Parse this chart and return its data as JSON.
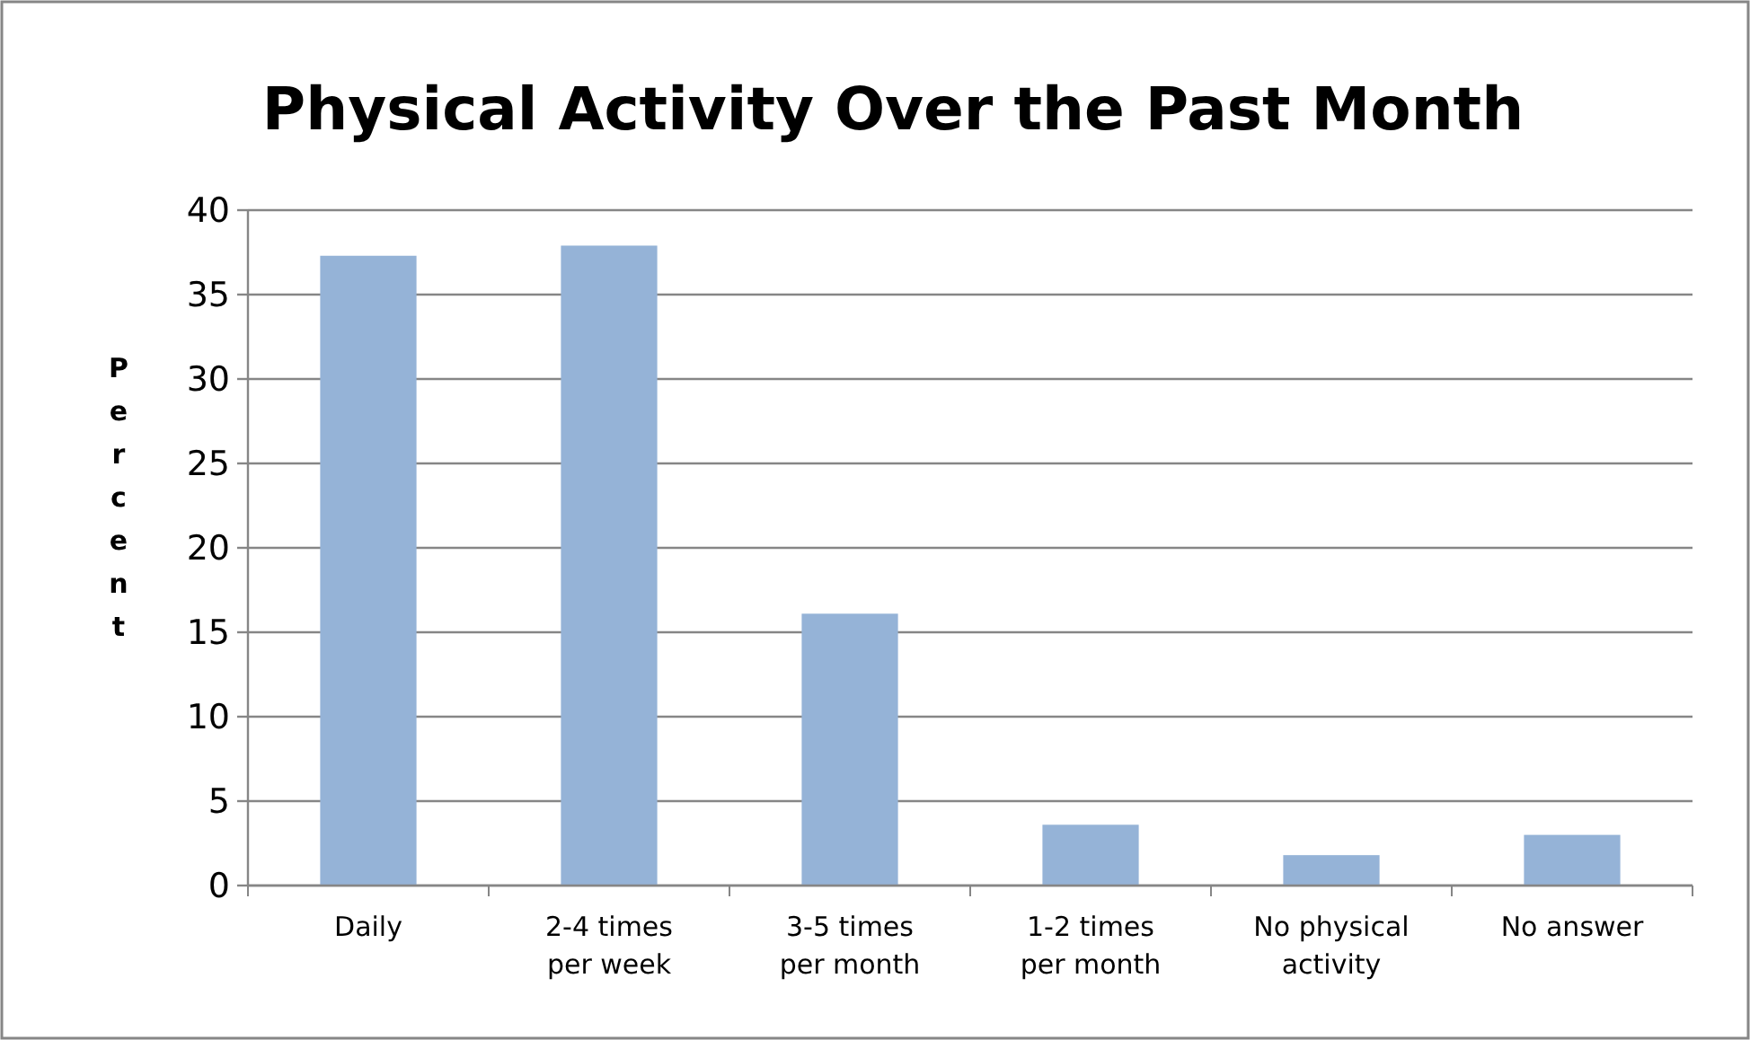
{
  "chart_data": {
    "type": "bar",
    "title": "Physical Activity Over the Past Month",
    "ylabel": "Percent",
    "categories": [
      "Daily",
      "2-4 times per week",
      "3-5 times per month",
      "1-2 times per month",
      "No physical activity",
      "No answer"
    ],
    "values": [
      37.3,
      37.9,
      16.1,
      3.6,
      1.8,
      3.0
    ],
    "color": "#95b3d7",
    "ylim": [
      0,
      40
    ],
    "yticks": [
      0,
      5,
      10,
      15,
      20,
      25,
      30,
      35,
      40
    ],
    "grid": "y"
  }
}
